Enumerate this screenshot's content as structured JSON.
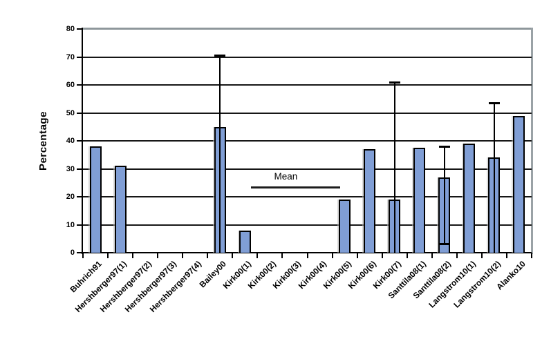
{
  "chart_data": {
    "type": "bar",
    "title": "",
    "xlabel": "",
    "ylabel": "Percentage",
    "ylim": [
      0,
      80
    ],
    "yticks": [
      0,
      10,
      20,
      30,
      40,
      50,
      60,
      70,
      80
    ],
    "grid": true,
    "legend": false,
    "categories": [
      "Buhrich91",
      "Hershberger97(1)",
      "Hershberger97(2)",
      "Hershberger97(3)",
      "Hershberger97(4)",
      "Bailey00",
      "Kirk00(1)",
      "Kirk00(2)",
      "Kirk00(3)",
      "Kirk00(4)",
      "Kirk00(5)",
      "Kirk00(6)",
      "Kirk00(7)",
      "Santtila08(1)",
      "Santtila08(2)",
      "Langstrom10(1)",
      "Langstrom10(2)",
      "Alanko10"
    ],
    "values": [
      38,
      31,
      0,
      0,
      0,
      45,
      8,
      0,
      0,
      0,
      19,
      37,
      19,
      37.5,
      27,
      39,
      34,
      49
    ],
    "error_bars": [
      {
        "category": "Bailey00",
        "index": 5,
        "low": 0,
        "high": 70.5,
        "cap_top": true,
        "cap_bottom": false
      },
      {
        "category": "Kirk00(7)",
        "index": 12,
        "low": 0,
        "high": 61,
        "cap_top": true,
        "cap_bottom": false
      },
      {
        "category": "Santtila08(2)",
        "index": 14,
        "low": 3,
        "high": 38,
        "cap_top": true,
        "cap_bottom": true
      },
      {
        "category": "Langstrom10(2)",
        "index": 16,
        "low": 0,
        "high": 53.5,
        "cap_top": true,
        "cap_bottom": false
      }
    ],
    "annotation": {
      "label": "Mean",
      "value": 23.5,
      "x_start_frac": 0.375,
      "x_end_frac": 0.573,
      "label_center_frac": 0.452
    },
    "colors": {
      "bar_fill": "#809ED5",
      "bar_border": "#000000",
      "gridline": "#161616",
      "plot_border": "#8e979b",
      "axis": "#000000"
    }
  }
}
